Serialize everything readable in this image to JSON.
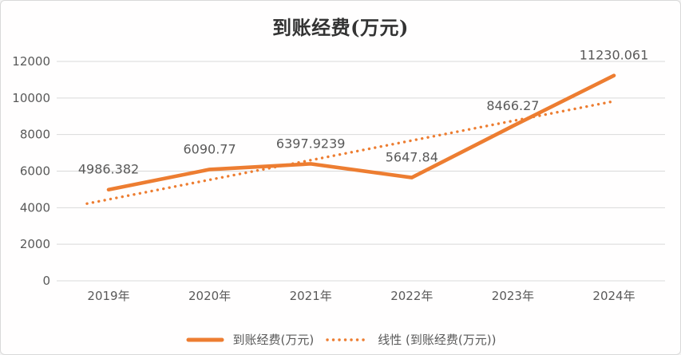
{
  "window": {
    "background": "#fffefe",
    "border_color": "#d9d9d9"
  },
  "chart_data": {
    "type": "line",
    "title": "到账经费(万元)",
    "categories": [
      "2019年",
      "2020年",
      "2021年",
      "2022年",
      "2023年",
      "2024年"
    ],
    "series": [
      {
        "name": "到账经费(万元)",
        "line_style": "solid",
        "values": [
          4986.382,
          6090.77,
          6397.9239,
          5647.84,
          8466.27,
          11230.061
        ],
        "data_labels": [
          "4986.382",
          "6090.77",
          "6397.9239",
          "5647.84",
          "8466.27",
          "11230.061"
        ]
      },
      {
        "name": "线性 (到账经费(万元))",
        "line_style": "dotted",
        "is_trendline": true,
        "values": [
          4451.2,
          5525.3,
          6599.5,
          7673.6,
          8747.8,
          9821.9
        ]
      }
    ],
    "xlabel": "",
    "ylabel": "",
    "ylim": [
      0,
      12000
    ],
    "ytick_step": 2000,
    "yticks": [
      "0",
      "2000",
      "4000",
      "6000",
      "8000",
      "10000",
      "12000"
    ],
    "grid": true,
    "legend_position": "bottom",
    "colors": {
      "series": "#ED7D31",
      "gridline": "#D9D9D9",
      "axis_text": "#595959",
      "data_label": "#595959",
      "title_text": "#333333",
      "border": "#D9D9D9"
    }
  }
}
